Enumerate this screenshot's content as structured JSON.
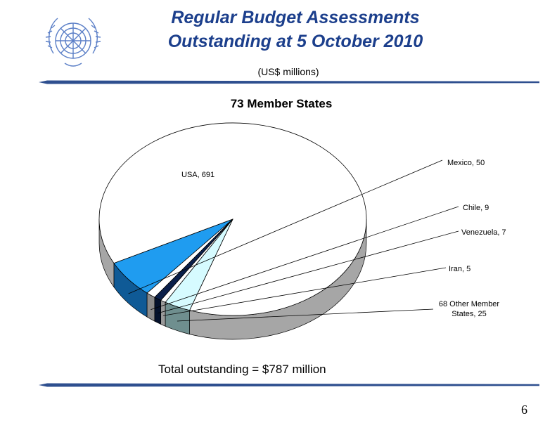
{
  "slide": {
    "title_line1": "Regular Budget Assessments",
    "title_line2": "Outstanding at 5 October 2010",
    "subtitle": "(US$ millions)",
    "footer_total": "Total outstanding = $787 million",
    "page_number": "6"
  },
  "colors": {
    "title": "#1c3f8c",
    "logo": "#5b7fc7"
  },
  "chart_data": {
    "type": "pie",
    "title": "73 Member States",
    "slices": [
      {
        "label": "USA, 691",
        "name": "USA",
        "value": 691,
        "color": "#ffffff",
        "side": "#a6a6a6"
      },
      {
        "label": "Mexico, 50",
        "name": "Mexico",
        "value": 50,
        "color": "#1f9cf0",
        "side": "#0f5a96"
      },
      {
        "label": "Chile, 9",
        "name": "Chile",
        "value": 9,
        "color": "#ffffff",
        "side": "#8a8a8a"
      },
      {
        "label": "Venezuela, 7",
        "name": "Venezuela",
        "value": 7,
        "color": "#0a1f4a",
        "side": "#05122c"
      },
      {
        "label": "Iran, 5",
        "name": "Iran",
        "value": 5,
        "color": "#ffffff",
        "side": "#9a9a9a"
      },
      {
        "label": "68 Other Member States, 25",
        "name": "68 Other Member States",
        "value": 25,
        "color": "#d6fbff",
        "side": "#6f8f8f"
      }
    ]
  }
}
